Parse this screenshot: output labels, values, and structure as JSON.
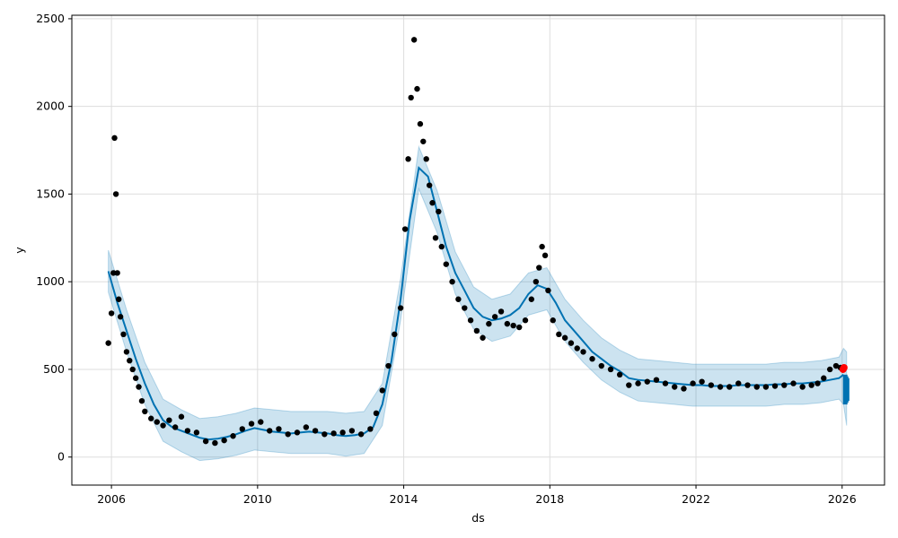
{
  "chart_data": {
    "type": "scatter",
    "xlabel": "ds",
    "ylabel": "y",
    "xlim": [
      "2004-12-01",
      "2027-03-01"
    ],
    "ylim": [
      -160,
      2520
    ],
    "x_ticks": [
      "2006",
      "2010",
      "2014",
      "2018",
      "2022",
      "2026"
    ],
    "y_ticks": [
      0,
      500,
      1000,
      1500,
      2000,
      2500
    ],
    "grid": true,
    "colors": {
      "observed": "#000000",
      "forecast": "#0072B2",
      "interval": "#0072B2",
      "highlight": "#ff0000",
      "grid": "#dddddd"
    },
    "series": [
      {
        "role": "observed",
        "marker": "dot",
        "x": [
          "2005-12-01",
          "2006-01-01",
          "2006-01-20",
          "2006-02-01",
          "2006-02-15",
          "2006-03-01",
          "2006-03-15",
          "2006-04-01",
          "2006-05-01",
          "2006-06-01",
          "2006-07-01",
          "2006-08-01",
          "2006-09-01",
          "2006-10-01",
          "2006-11-01",
          "2006-12-01",
          "2007-02-01",
          "2007-04-01",
          "2007-06-01",
          "2007-08-01",
          "2007-10-01",
          "2007-12-01",
          "2008-02-01",
          "2008-05-01",
          "2008-08-01",
          "2008-11-01",
          "2009-02-01",
          "2009-05-01",
          "2009-08-01",
          "2009-11-01",
          "2010-02-01",
          "2010-05-01",
          "2010-08-01",
          "2010-11-01",
          "2011-02-01",
          "2011-05-01",
          "2011-08-01",
          "2011-11-01",
          "2012-02-01",
          "2012-05-01",
          "2012-08-01",
          "2012-11-01",
          "2013-02-01",
          "2013-04-01",
          "2013-06-01",
          "2013-08-01",
          "2013-10-01",
          "2013-12-01",
          "2014-01-15",
          "2014-02-15",
          "2014-03-15",
          "2014-04-15",
          "2014-05-15",
          "2014-06-15",
          "2014-07-15",
          "2014-08-15",
          "2014-09-15",
          "2014-10-15",
          "2014-11-15",
          "2014-12-15",
          "2015-01-15",
          "2015-03-01",
          "2015-05-01",
          "2015-07-01",
          "2015-09-01",
          "2015-11-01",
          "2016-01-01",
          "2016-03-01",
          "2016-05-01",
          "2016-07-01",
          "2016-09-01",
          "2016-11-01",
          "2017-01-01",
          "2017-03-01",
          "2017-05-01",
          "2017-07-01",
          "2017-08-15",
          "2017-09-15",
          "2017-10-15",
          "2017-11-15",
          "2017-12-15",
          "2018-02-01",
          "2018-04-01",
          "2018-06-01",
          "2018-08-01",
          "2018-10-01",
          "2018-12-01",
          "2019-03-01",
          "2019-06-01",
          "2019-09-01",
          "2019-12-01",
          "2020-03-01",
          "2020-06-01",
          "2020-09-01",
          "2020-12-01",
          "2021-03-01",
          "2021-06-01",
          "2021-09-01",
          "2021-12-01",
          "2022-03-01",
          "2022-06-01",
          "2022-09-01",
          "2022-12-01",
          "2023-03-01",
          "2023-06-01",
          "2023-09-01",
          "2023-12-01",
          "2024-03-01",
          "2024-06-01",
          "2024-09-01",
          "2024-12-01",
          "2025-03-01",
          "2025-05-01",
          "2025-07-01",
          "2025-09-01",
          "2025-11-01",
          "2025-12-15"
        ],
        "y": [
          650,
          820,
          1050,
          1820,
          1500,
          1050,
          900,
          800,
          700,
          600,
          550,
          500,
          450,
          400,
          320,
          260,
          220,
          200,
          180,
          210,
          170,
          230,
          150,
          140,
          90,
          80,
          95,
          120,
          160,
          190,
          200,
          150,
          160,
          130,
          140,
          170,
          150,
          130,
          135,
          140,
          150,
          130,
          160,
          250,
          380,
          520,
          700,
          850,
          1300,
          1700,
          2050,
          2380,
          2100,
          1900,
          1800,
          1700,
          1550,
          1450,
          1250,
          1400,
          1200,
          1100,
          1000,
          900,
          850,
          780,
          720,
          680,
          760,
          800,
          830,
          760,
          750,
          740,
          780,
          900,
          1000,
          1080,
          1200,
          1150,
          950,
          780,
          700,
          680,
          650,
          620,
          600,
          560,
          520,
          500,
          470,
          410,
          420,
          430,
          440,
          420,
          400,
          390,
          420,
          430,
          410,
          400,
          400,
          420,
          410,
          400,
          400,
          405,
          410,
          420,
          400,
          410,
          420,
          450,
          500,
          520,
          510
        ]
      },
      {
        "role": "forecast",
        "marker": "line",
        "x": [
          "2005-12-01",
          "2006-03-01",
          "2006-06-01",
          "2006-09-01",
          "2006-12-01",
          "2007-03-01",
          "2007-06-01",
          "2007-09-01",
          "2007-12-01",
          "2008-03-01",
          "2008-06-01",
          "2008-09-01",
          "2008-12-01",
          "2009-03-01",
          "2009-06-01",
          "2009-09-01",
          "2009-12-01",
          "2010-03-01",
          "2010-06-01",
          "2010-09-01",
          "2010-12-01",
          "2011-03-01",
          "2011-06-01",
          "2011-09-01",
          "2011-12-01",
          "2012-03-01",
          "2012-06-01",
          "2012-09-01",
          "2012-12-01",
          "2013-03-01",
          "2013-06-01",
          "2013-09-01",
          "2013-12-01",
          "2014-03-01",
          "2014-06-01",
          "2014-09-01",
          "2014-12-01",
          "2015-03-01",
          "2015-06-01",
          "2015-09-01",
          "2015-12-01",
          "2016-03-01",
          "2016-06-01",
          "2016-09-01",
          "2016-12-01",
          "2017-03-01",
          "2017-06-01",
          "2017-09-01",
          "2017-12-01",
          "2018-03-01",
          "2018-06-01",
          "2018-09-01",
          "2018-12-01",
          "2019-03-01",
          "2019-06-01",
          "2019-09-01",
          "2019-12-01",
          "2020-03-01",
          "2020-06-01",
          "2020-09-01",
          "2020-12-01",
          "2021-03-01",
          "2021-06-01",
          "2021-09-01",
          "2021-12-01",
          "2022-03-01",
          "2022-06-01",
          "2022-09-01",
          "2022-12-01",
          "2023-03-01",
          "2023-06-01",
          "2023-09-01",
          "2023-12-01",
          "2024-03-01",
          "2024-06-01",
          "2024-09-01",
          "2024-12-01",
          "2025-03-01",
          "2025-06-01",
          "2025-09-01",
          "2025-12-01",
          "2026-01-15"
        ],
        "y": [
          1060,
          880,
          720,
          560,
          420,
          300,
          210,
          170,
          150,
          130,
          110,
          100,
          105,
          115,
          130,
          150,
          165,
          155,
          145,
          140,
          135,
          140,
          145,
          140,
          135,
          125,
          120,
          125,
          135,
          170,
          300,
          550,
          900,
          1350,
          1650,
          1600,
          1400,
          1200,
          1050,
          950,
          850,
          800,
          780,
          790,
          810,
          850,
          930,
          980,
          960,
          880,
          780,
          720,
          660,
          600,
          560,
          520,
          490,
          450,
          440,
          435,
          430,
          425,
          420,
          415,
          410,
          410,
          405,
          405,
          405,
          410,
          410,
          410,
          410,
          415,
          415,
          420,
          420,
          425,
          430,
          440,
          450,
          470
        ]
      },
      {
        "role": "interval",
        "marker": "band",
        "x": [
          "2005-12-01",
          "2006-06-01",
          "2006-12-01",
          "2007-06-01",
          "2007-12-01",
          "2008-06-01",
          "2008-12-01",
          "2009-06-01",
          "2009-12-01",
          "2010-06-01",
          "2010-12-01",
          "2011-06-01",
          "2011-12-01",
          "2012-06-01",
          "2012-12-01",
          "2013-06-01",
          "2013-12-01",
          "2014-06-01",
          "2014-12-01",
          "2015-06-01",
          "2015-12-01",
          "2016-06-01",
          "2016-12-01",
          "2017-06-01",
          "2017-12-01",
          "2018-06-01",
          "2018-12-01",
          "2019-06-01",
          "2019-12-01",
          "2020-06-01",
          "2020-12-01",
          "2021-06-01",
          "2021-12-01",
          "2022-06-01",
          "2022-12-01",
          "2023-06-01",
          "2023-12-01",
          "2024-06-01",
          "2024-12-01",
          "2025-06-01",
          "2025-12-01",
          "2026-01-15",
          "2026-02-15"
        ],
        "lower": [
          940,
          600,
          300,
          90,
          30,
          -20,
          -10,
          10,
          40,
          30,
          20,
          20,
          20,
          5,
          20,
          180,
          780,
          1530,
          1280,
          930,
          730,
          660,
          690,
          810,
          840,
          660,
          540,
          440,
          370,
          320,
          310,
          300,
          290,
          290,
          290,
          290,
          290,
          300,
          300,
          310,
          330,
          300,
          180
        ],
        "upper": [
          1180,
          840,
          540,
          330,
          270,
          220,
          230,
          250,
          280,
          270,
          260,
          260,
          260,
          250,
          260,
          420,
          1020,
          1770,
          1520,
          1170,
          970,
          900,
          930,
          1050,
          1080,
          900,
          780,
          680,
          610,
          560,
          550,
          540,
          530,
          530,
          530,
          530,
          530,
          540,
          540,
          550,
          570,
          620,
          600
        ]
      },
      {
        "role": "future",
        "marker": "column",
        "x": [
          "2026-02-01",
          "2026-02-10",
          "2026-02-20"
        ],
        "y_low": [
          300,
          310,
          320
        ],
        "y_high": [
          470,
          460,
          450
        ]
      },
      {
        "role": "highlight",
        "marker": "dot",
        "x": [
          "2026-01-10",
          "2026-01-20"
        ],
        "y": [
          500,
          510
        ]
      }
    ]
  }
}
